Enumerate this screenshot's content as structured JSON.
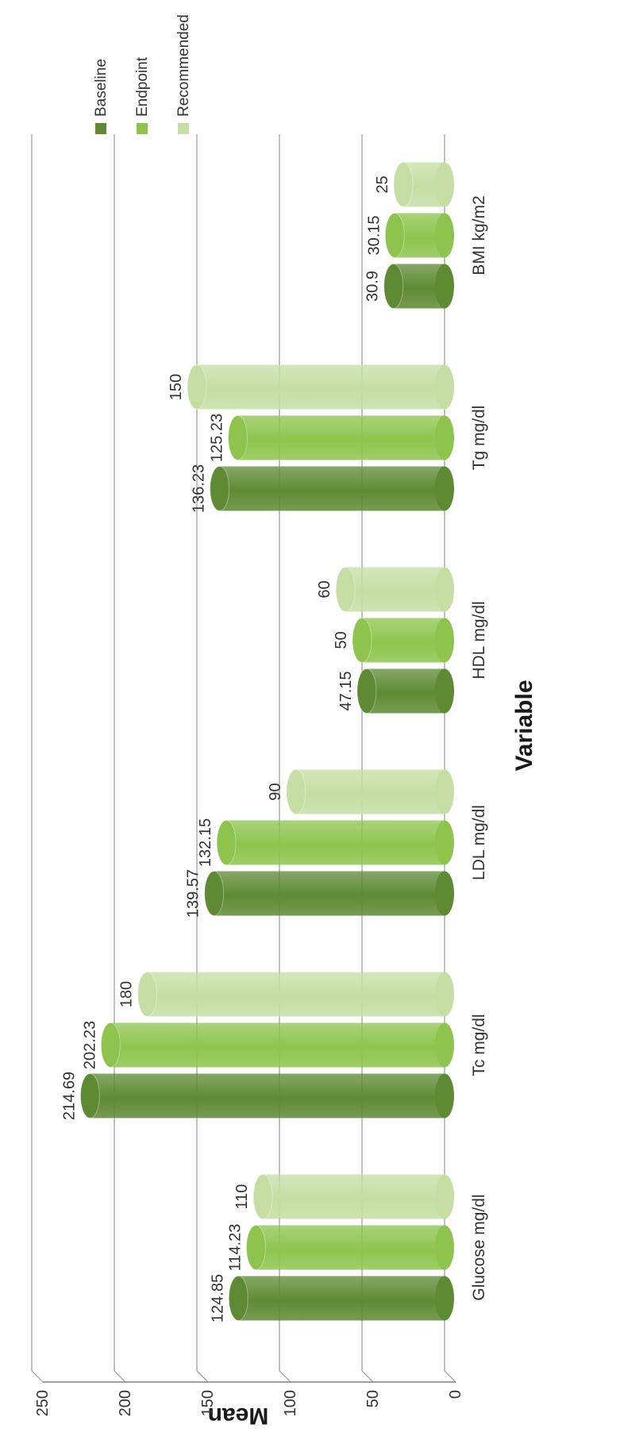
{
  "chart_data": {
    "type": "bar",
    "title": "",
    "xlabel": "Variable",
    "ylabel": "Mean",
    "ylim": [
      0,
      250
    ],
    "yticks": [
      0,
      50,
      100,
      150,
      200,
      250
    ],
    "grid": true,
    "legend_position": "right",
    "categories": [
      "Glucose mg/dl",
      "Tc mg/dl",
      "LDL mg/dl",
      "HDL mg/dl",
      "Tg mg/dl",
      "BMI kg/m2"
    ],
    "series": [
      {
        "name": "Baseline",
        "color": "#5e8a34",
        "values": [
          124.85,
          214.69,
          139.57,
          47.15,
          136.23,
          30.9
        ]
      },
      {
        "name": "Endpoint",
        "color": "#8ec44e",
        "values": [
          114.23,
          202.23,
          132.15,
          50,
          125.23,
          30.15
        ]
      },
      {
        "name": "Recommended",
        "color": "#c6dea4",
        "values": [
          110,
          180,
          90,
          60,
          150,
          25
        ]
      }
    ],
    "value_labels": [
      [
        "124.85",
        "214.69",
        "139.57",
        "47.15",
        "136.23",
        "30.9"
      ],
      [
        "114.23",
        "202.23",
        "132.15",
        "50",
        "125.23",
        "30.15"
      ],
      [
        "110",
        "180",
        "90",
        "60",
        "150",
        "25"
      ]
    ]
  }
}
